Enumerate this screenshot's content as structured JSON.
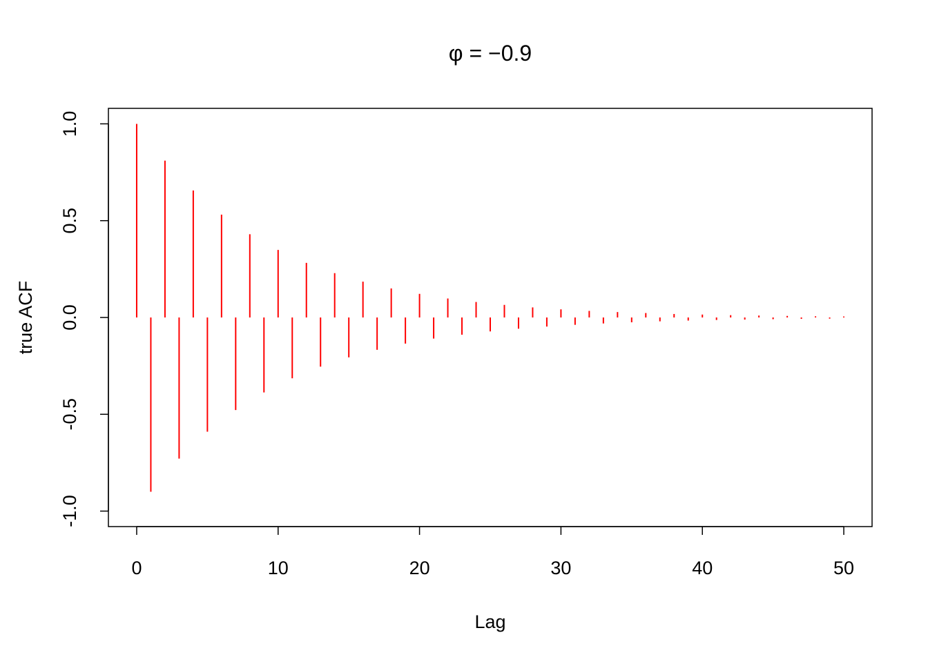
{
  "chart_data": {
    "type": "stem",
    "title": "φ = −0.9",
    "xlabel": "Lag",
    "ylabel": "true ACF",
    "x": [
      0,
      1,
      2,
      3,
      4,
      5,
      6,
      7,
      8,
      9,
      10,
      11,
      12,
      13,
      14,
      15,
      16,
      17,
      18,
      19,
      20,
      21,
      22,
      23,
      24,
      25,
      26,
      27,
      28,
      29,
      30,
      31,
      32,
      33,
      34,
      35,
      36,
      37,
      38,
      39,
      40,
      41,
      42,
      43,
      44,
      45,
      46,
      47,
      48,
      49,
      50
    ],
    "values": [
      1,
      -0.9,
      0.81,
      -0.729,
      0.656,
      -0.59,
      0.531,
      -0.478,
      0.43,
      -0.387,
      0.349,
      -0.314,
      0.282,
      -0.254,
      0.229,
      -0.206,
      0.185,
      -0.167,
      0.15,
      -0.135,
      0.122,
      -0.109,
      0.098,
      -0.089,
      0.08,
      -0.072,
      0.065,
      -0.058,
      0.052,
      -0.047,
      0.042,
      -0.038,
      0.034,
      -0.031,
      0.028,
      -0.025,
      0.023,
      -0.02,
      0.018,
      -0.016,
      0.015,
      -0.013,
      0.012,
      -0.011,
      0.01,
      -0.009,
      0.008,
      -0.007,
      0.006,
      -0.006,
      0.005
    ],
    "color": "#ff0000",
    "xlim": [
      -2,
      52
    ],
    "xticks": [
      0,
      10,
      20,
      30,
      40,
      50
    ],
    "ylim": [
      -1.08,
      1.08
    ],
    "yticks": [
      {
        "value": -1,
        "label": "-1.0"
      },
      {
        "value": -0.5,
        "label": "-0.5"
      },
      {
        "value": 0,
        "label": "0.0"
      },
      {
        "value": 0.5,
        "label": "0.5"
      },
      {
        "value": 1,
        "label": "1.0"
      }
    ],
    "grid": false
  }
}
